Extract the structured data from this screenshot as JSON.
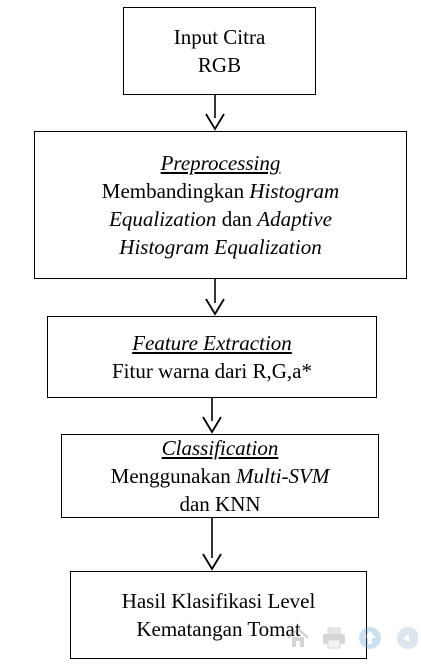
{
  "diagram": {
    "steps": [
      {
        "id": "input",
        "lines": [
          [
            {
              "text": "Input Citra",
              "style": "normal"
            }
          ],
          [
            {
              "text": "RGB",
              "style": "normal"
            }
          ]
        ]
      },
      {
        "id": "preprocessing",
        "title": "Preprocessing",
        "lines": [
          [
            {
              "text": "Membandingkan ",
              "style": "normal"
            },
            {
              "text": "Histogram",
              "style": "italic"
            }
          ],
          [
            {
              "text": "Equalization",
              "style": "italic"
            },
            {
              "text": " dan ",
              "style": "normal"
            },
            {
              "text": "Adaptive",
              "style": "italic"
            }
          ],
          [
            {
              "text": "Histogram Equalization",
              "style": "italic"
            }
          ]
        ]
      },
      {
        "id": "feature-extraction",
        "title": "Feature Extraction",
        "lines": [
          [
            {
              "text": "Fitur warna dari R,G,a*",
              "style": "normal"
            }
          ]
        ]
      },
      {
        "id": "classification",
        "title": "Classification",
        "lines": [
          [
            {
              "text": "Menggunakan ",
              "style": "normal"
            },
            {
              "text": "Multi-SVM",
              "style": "italic"
            }
          ],
          [
            {
              "text": "dan KNN",
              "style": "normal"
            }
          ]
        ]
      },
      {
        "id": "result",
        "lines": [
          [
            {
              "text": "Hasil Klasifikasi Level",
              "style": "normal"
            }
          ],
          [
            {
              "text": "Kematangan Tomat",
              "style": "normal"
            }
          ]
        ]
      }
    ],
    "colors": {
      "stroke": "#000000",
      "background": "#ffffff",
      "toolbar_icon": "#8a8a8a"
    }
  },
  "toolbar": {
    "icons": [
      "home-icon",
      "print-icon",
      "scroll-up-icon",
      "chat-icon"
    ]
  }
}
